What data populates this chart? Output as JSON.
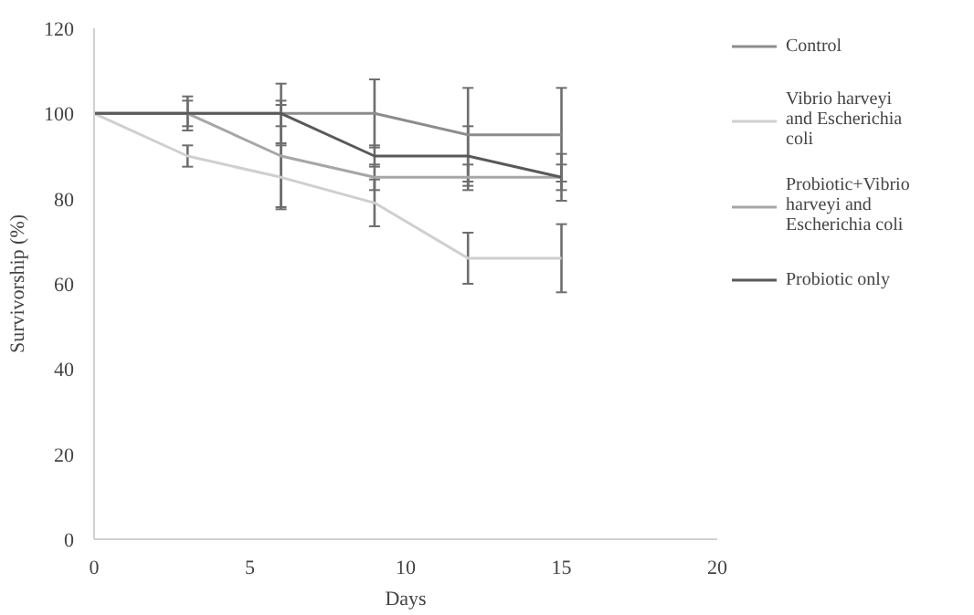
{
  "chart_data": {
    "type": "line",
    "xlabel": "Days",
    "ylabel": "Survivorship (%)",
    "x": [
      0,
      3,
      6,
      9,
      12,
      15
    ],
    "xlim": [
      0,
      20
    ],
    "xticks": [
      0,
      5,
      10,
      15,
      20
    ],
    "ylim": [
      0,
      120
    ],
    "yticks": [
      0,
      20,
      40,
      60,
      80,
      100,
      120
    ],
    "grid": false,
    "legend": "right",
    "marker": "none",
    "series": [
      {
        "name": "Control",
        "color": "#8c8c8c",
        "values": [
          100,
          100,
          100,
          100,
          95,
          95
        ],
        "errors": [
          null,
          4,
          7,
          8,
          11,
          11
        ]
      },
      {
        "name": "Vibrio harveyi and Escherichia coli",
        "color": "#cfcfcf",
        "values": [
          100,
          90,
          85,
          79,
          66,
          66
        ],
        "errors": [
          null,
          2.5,
          7.5,
          5.5,
          6,
          8
        ]
      },
      {
        "name": "Probiotic+Vibrio harveyi and Escherichia coli",
        "color": "#a6a6a6",
        "values": [
          100,
          100,
          90,
          85,
          85,
          85
        ],
        "errors": [
          null,
          3,
          12,
          3,
          3,
          3
        ]
      },
      {
        "name": "Probiotic only",
        "color": "#595959",
        "values": [
          100,
          100,
          100,
          90,
          90,
          85
        ],
        "errors": [
          null,
          null,
          3,
          2.5,
          7,
          5.5
        ]
      }
    ]
  }
}
